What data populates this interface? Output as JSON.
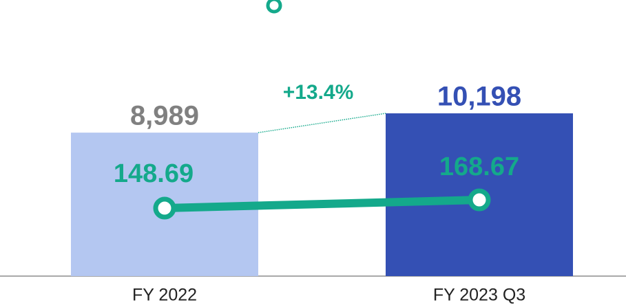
{
  "chart_data": {
    "type": "bar",
    "categories": [
      "FY 2022",
      "FY 2023 Q3"
    ],
    "series": [
      {
        "type": "bar",
        "colors": [
          "#b4c7f1",
          "#3450b4"
        ],
        "values": [
          8989,
          10198
        ],
        "value_labels": [
          "8,989",
          "10,198"
        ],
        "label_colors": [
          "#808080",
          "#3450b4"
        ]
      },
      {
        "type": "line",
        "axis": "y2",
        "color": "#14a98b",
        "values": [
          148.69,
          168.67
        ]
      }
    ],
    "annotation": "+13.4%",
    "ylim": [
      0,
      17300
    ],
    "y2lim": [
      -16,
      653
    ]
  }
}
